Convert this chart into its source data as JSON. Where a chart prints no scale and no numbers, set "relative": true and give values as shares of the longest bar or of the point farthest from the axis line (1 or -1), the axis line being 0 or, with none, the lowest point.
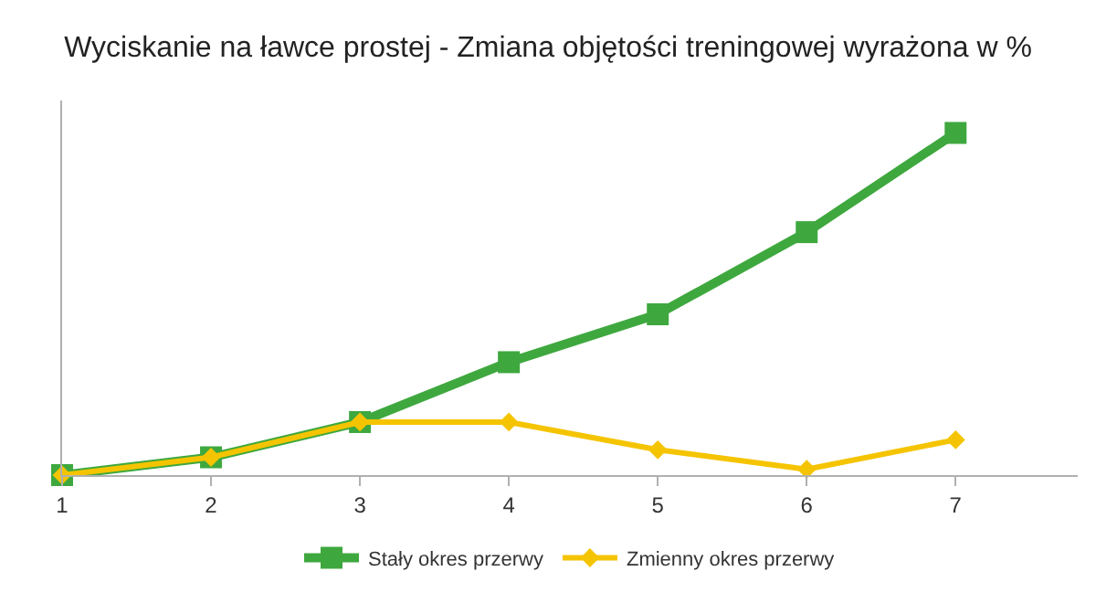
{
  "chart_data": {
    "type": "line",
    "title": "Wyciskanie na ławce prostej - Zmiana objętości treningowej wyrażona w %",
    "relative": true,
    "x": [
      1,
      2,
      3,
      4,
      5,
      6,
      7
    ],
    "xlim": [
      1,
      7.82
    ],
    "xticks": [
      1,
      2,
      3,
      4,
      5,
      6,
      7
    ],
    "legend": "bottom",
    "series": [
      {
        "name": "Stały okres przerwy",
        "color": "#3ea83e",
        "marker": "square",
        "values": [
          0,
          0.052,
          0.155,
          0.33,
          0.47,
          0.71,
          1
        ]
      },
      {
        "name": "Zmienny okres przerwy",
        "color": "#f5c400",
        "marker": "diamond",
        "values": [
          0,
          0.052,
          0.155,
          0.155,
          0.074,
          0.017,
          0.103
        ]
      }
    ]
  }
}
